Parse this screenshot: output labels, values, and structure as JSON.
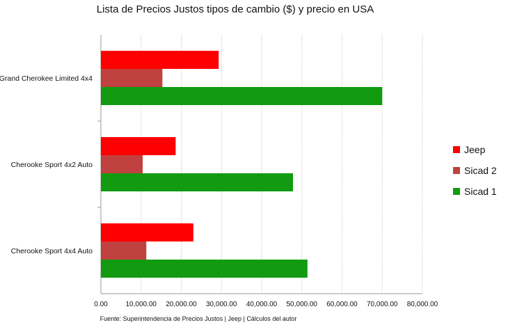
{
  "chart_data": {
    "type": "bar",
    "orientation": "horizontal",
    "title": "Lista de Precios Justos tipos de cambio ($)  y precio en USA",
    "source": "Fuente: Superintendencia de Precios Justos | Jeep | Cálculos del autor",
    "categories": [
      "Grand Cherokee Limited 4x4",
      "Cherooke Sport 4x2 Auto",
      "Cherooke Sport 4x4 Auto"
    ],
    "series": [
      {
        "name": "Jeep",
        "color": "#ff0000",
        "values": [
          29300,
          18600,
          23000
        ]
      },
      {
        "name": "Sicad 2",
        "color": "#c0413f",
        "values": [
          15300,
          10400,
          11300
        ]
      },
      {
        "name": "Sicad 1",
        "color": "#129a10",
        "values": [
          70000,
          47800,
          51400
        ]
      }
    ],
    "xlim": [
      0,
      80000
    ],
    "xticks": [
      "0.00",
      "10,000.00",
      "20,000.00",
      "30,000.00",
      "40,000.00",
      "50,000.00",
      "60,000.00",
      "70,000.00",
      "80,000.00"
    ],
    "grid": true,
    "legend_position": "right"
  }
}
